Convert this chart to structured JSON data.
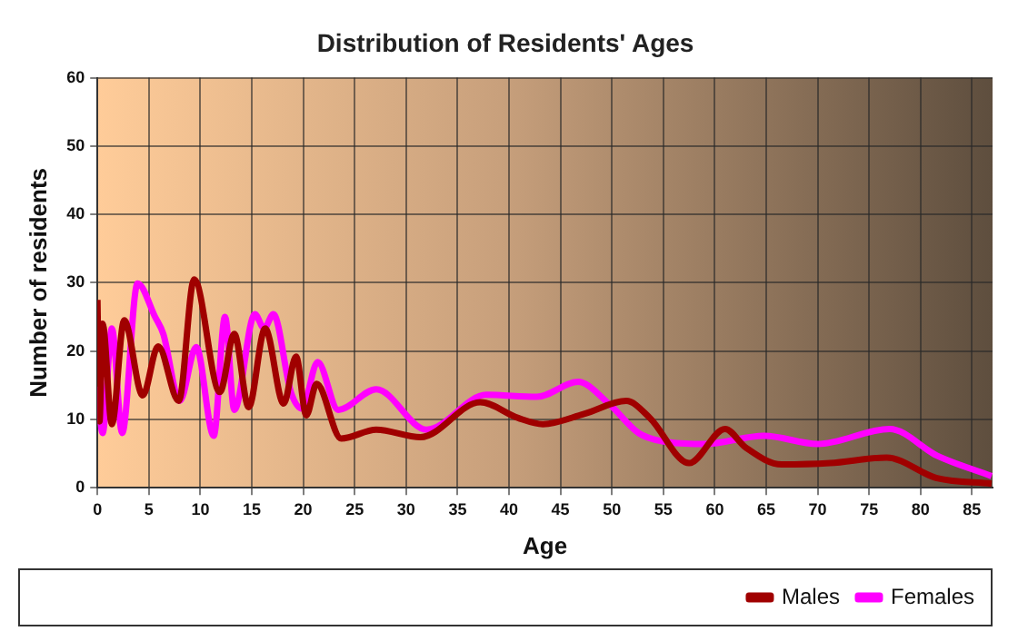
{
  "chart_data": {
    "type": "line",
    "title": "Distribution of Residents' Ages",
    "xlabel": "Age",
    "ylabel": "Number of residents",
    "xlim": [
      0,
      87
    ],
    "xticks": [
      0,
      5,
      10,
      15,
      20,
      25,
      30,
      35,
      40,
      45,
      50,
      55,
      60,
      65,
      70,
      75,
      80,
      85
    ],
    "ylim": [
      0,
      60
    ],
    "yticks": [
      0,
      10,
      20,
      30,
      40,
      50,
      60
    ],
    "grid": true,
    "legend": "bottom right",
    "line_style": "solid",
    "marker": "none",
    "series": [
      {
        "name": "Males",
        "color": "#a00000",
        "x": [
          0,
          0.2,
          0.5,
          1.4,
          2.6,
          4.4,
          5.9,
          7.9,
          9.4,
          11.9,
          13.3,
          14.7,
          16.3,
          18.1,
          19.3,
          20.3,
          21.3,
          23.7,
          27.1,
          31.4,
          37.2,
          40.9,
          43.3,
          47.3,
          51.4,
          53.7,
          57.5,
          61,
          63,
          66.5,
          71.2,
          76.7,
          81.6,
          86.9
        ],
        "values": [
          27.5,
          9.7,
          24,
          9.3,
          24.5,
          13.5,
          20.7,
          12.7,
          30.5,
          14,
          22.5,
          11.8,
          23.3,
          12.3,
          19.2,
          10.6,
          15.2,
          7.2,
          8.5,
          7.4,
          12.5,
          10.2,
          9.3,
          10.8,
          12.7,
          10.2,
          3.6,
          8.6,
          5.9,
          3.4,
          3.6,
          4.4,
          1.4,
          0.6
        ]
      },
      {
        "name": "Females",
        "color": "#ff00ff",
        "x": [
          0,
          0.5,
          1.4,
          2.4,
          3.9,
          5.6,
          6.4,
          8,
          9.6,
          11.3,
          12.4,
          13.3,
          15.3,
          16.2,
          17.1,
          18.8,
          19.9,
          21.4,
          23.4,
          27.1,
          32,
          37.8,
          42.7,
          46.7,
          49.7,
          52.6,
          54.9,
          59,
          64.8,
          70,
          77,
          81.6,
          86.9
        ],
        "values": [
          14.8,
          8,
          23.3,
          8,
          29.9,
          25,
          22.5,
          12.7,
          20.6,
          7.6,
          25,
          11.4,
          25.4,
          23.3,
          25.4,
          14,
          11.6,
          18.4,
          11.4,
          14.4,
          8.5,
          13.6,
          13.3,
          15.5,
          12.3,
          8,
          6.8,
          6.4,
          7.6,
          6.4,
          8.6,
          4.7,
          1.7
        ]
      }
    ]
  }
}
